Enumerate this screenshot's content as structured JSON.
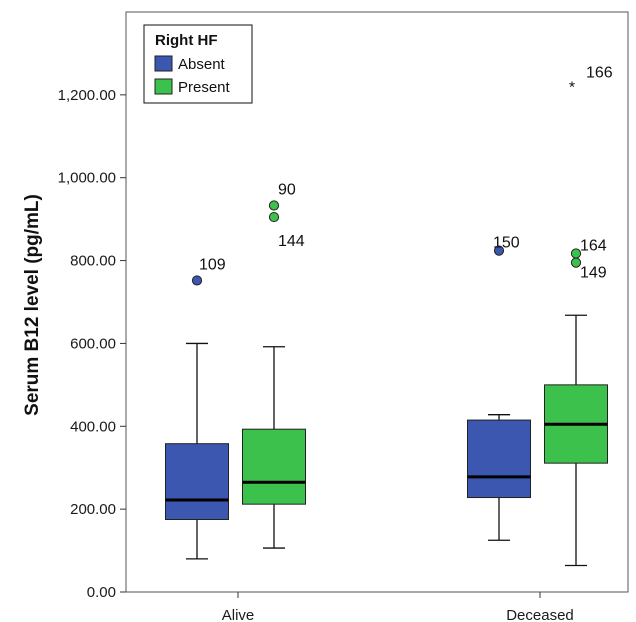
{
  "chart_data": {
    "type": "boxplot",
    "title": "",
    "ylabel": "Serum B12 level (pg/mL)",
    "xlabel": "",
    "ylim": [
      0,
      1400
    ],
    "yticks": [
      0,
      200,
      400,
      600,
      800,
      1000,
      1200
    ],
    "ytick_labels": [
      "0.00",
      "200.00",
      "400.00",
      "600.00",
      "800.00",
      "1,000.00",
      "1,200.00"
    ],
    "categories": [
      "Alive",
      "Deceased"
    ],
    "legend": {
      "title": "Right HF",
      "position": "top-left",
      "entries": [
        {
          "name": "Absent",
          "color": "#3c57b0"
        },
        {
          "name": "Present",
          "color": "#3cc24c"
        }
      ]
    },
    "series": [
      {
        "name": "Absent",
        "color": "#3c57b0",
        "boxes": [
          {
            "category": "Alive",
            "whisker_low": 80,
            "q1": 175,
            "median": 222,
            "q3": 358,
            "whisker_high": 600,
            "outliers": [
              {
                "value": 752,
                "label": "109",
                "marker": "circle"
              }
            ]
          },
          {
            "category": "Deceased",
            "whisker_low": 125,
            "q1": 228,
            "median": 278,
            "q3": 415,
            "whisker_high": 428,
            "outliers": [
              {
                "value": 824,
                "label": "150",
                "marker": "circle"
              }
            ]
          }
        ]
      },
      {
        "name": "Present",
        "color": "#3cc24c",
        "boxes": [
          {
            "category": "Alive",
            "whisker_low": 106,
            "q1": 212,
            "median": 265,
            "q3": 393,
            "whisker_high": 592,
            "outliers": [
              {
                "value": 933,
                "label": "90",
                "marker": "circle"
              },
              {
                "value": 905,
                "label": "144",
                "marker": "circle"
              }
            ]
          },
          {
            "category": "Deceased",
            "whisker_low": 64,
            "q1": 311,
            "median": 405,
            "q3": 500,
            "whisker_high": 668,
            "outliers": [
              {
                "value": 1225,
                "label": "166",
                "marker": "star"
              },
              {
                "value": 817,
                "label": "164",
                "marker": "circle"
              },
              {
                "value": 795,
                "label": "149",
                "marker": "circle"
              }
            ]
          }
        ]
      }
    ]
  }
}
